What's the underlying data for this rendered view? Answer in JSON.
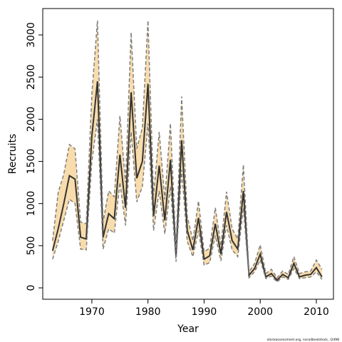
{
  "chart_data": {
    "type": "line",
    "x_label": "Year",
    "y_label": "Recruits",
    "footnote": "stockassessment.org, nscodbeststock, r2498",
    "x": [
      1963,
      1964,
      1965,
      1966,
      1967,
      1968,
      1969,
      1970,
      1971,
      1972,
      1973,
      1974,
      1975,
      1976,
      1977,
      1978,
      1979,
      1980,
      1981,
      1982,
      1983,
      1984,
      1985,
      1986,
      1987,
      1988,
      1989,
      1990,
      1991,
      1992,
      1993,
      1994,
      1995,
      1996,
      1997,
      1998,
      1999,
      2000,
      2001,
      2002,
      2003,
      2004,
      2005,
      2006,
      2007,
      2008,
      2009,
      2010,
      2011
    ],
    "series": [
      {
        "color": "#333333",
        "values": [
          440,
          700,
          1000,
          1330,
          1290,
          600,
          580,
          1800,
          2450,
          600,
          880,
          820,
          1580,
          950,
          2320,
          1300,
          1500,
          2420,
          850,
          1450,
          800,
          1520,
          380,
          1750,
          680,
          450,
          830,
          340,
          380,
          760,
          400,
          900,
          560,
          460,
          1150,
          150,
          230,
          400,
          130,
          170,
          90,
          160,
          120,
          290,
          130,
          150,
          160,
          240,
          130
        ]
      },
      {
        "color": "#7f7f7f",
        "values": [
          340,
          550,
          800,
          1050,
          1000,
          460,
          450,
          1500,
          2000,
          460,
          700,
          650,
          1250,
          740,
          1850,
          1020,
          1200,
          1950,
          680,
          1150,
          640,
          1200,
          310,
          1400,
          550,
          370,
          680,
          270,
          300,
          620,
          320,
          740,
          450,
          370,
          950,
          120,
          190,
          330,
          110,
          140,
          70,
          130,
          100,
          230,
          110,
          120,
          130,
          190,
          100
        ]
      },
      {
        "color": "#7f7f7f",
        "values": [
          560,
          1130,
          1350,
          1700,
          1650,
          780,
          760,
          2300,
          3170,
          780,
          1150,
          1080,
          2040,
          1250,
          3030,
          1650,
          1900,
          3170,
          1100,
          1850,
          1050,
          1950,
          470,
          2270,
          850,
          560,
          1030,
          430,
          470,
          950,
          500,
          1140,
          700,
          580,
          1460,
          190,
          290,
          510,
          170,
          220,
          120,
          200,
          160,
          370,
          170,
          190,
          200,
          330,
          220
        ]
      }
    ],
    "band_color": "#f8dcac",
    "xlim": [
      1961.25,
      2013.05
    ],
    "xticks": [
      1970,
      1980,
      1990,
      2000,
      2010
    ],
    "ylim": [
      -135,
      3313
    ],
    "yticks": [
      0,
      500,
      1000,
      1500,
      2000,
      2500,
      3000
    ]
  }
}
